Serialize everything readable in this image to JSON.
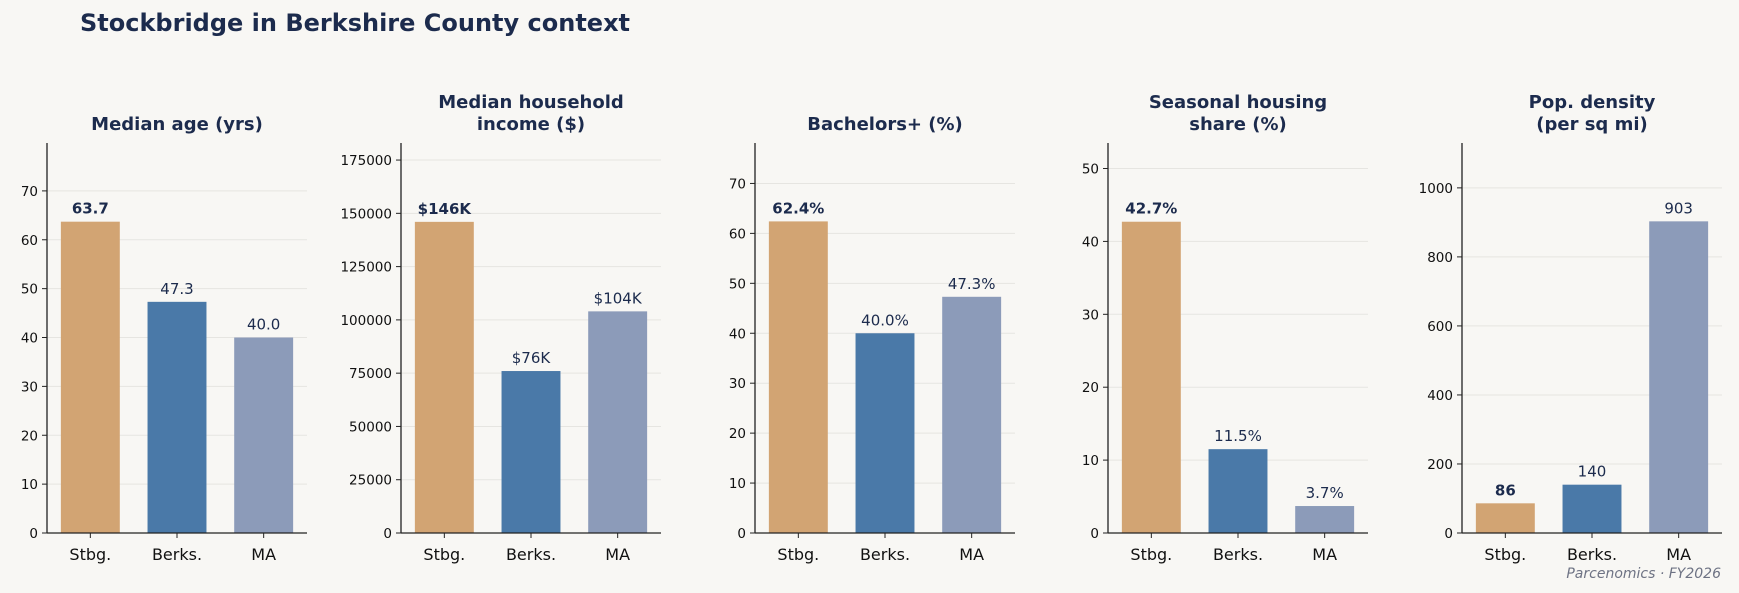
{
  "title": "Stockbridge in Berkshire County context",
  "credit": "Parcenomics · FY2026",
  "colors": {
    "stbg": "#d2a473",
    "berks": "#4a79a8",
    "ma": "#8c9bb9",
    "title_text": "#1c2b4d",
    "grid": "#e6e5e1",
    "axis": "#222222"
  },
  "chart_data": [
    {
      "type": "bar",
      "title": [
        "Median age (yrs)"
      ],
      "categories": [
        "Stbg.",
        "Berks.",
        "MA"
      ],
      "values": [
        63.7,
        47.3,
        40.0
      ],
      "labels": [
        "63.7",
        "47.3",
        "40.0"
      ],
      "ylim": [
        0,
        79.8
      ],
      "yticks": [
        0,
        10,
        20,
        30,
        40,
        50,
        60,
        70
      ],
      "ytick_labels": [
        "0",
        "10",
        "20",
        "30",
        "40",
        "50",
        "60",
        "70"
      ]
    },
    {
      "type": "bar",
      "title": [
        "Median household",
        "income ($)"
      ],
      "categories": [
        "Stbg.",
        "Berks.",
        "MA"
      ],
      "values": [
        146000,
        76000,
        104000
      ],
      "labels": [
        "$146K",
        "$76K",
        "$104K"
      ],
      "ylim": [
        0,
        183000
      ],
      "yticks": [
        0,
        25000,
        50000,
        75000,
        100000,
        125000,
        150000,
        175000
      ],
      "ytick_labels": [
        "0",
        "25000",
        "50000",
        "75000",
        "100000",
        "125000",
        "150000",
        "175000"
      ]
    },
    {
      "type": "bar",
      "title": [
        "Bachelors+ (%)"
      ],
      "categories": [
        "Stbg.",
        "Berks.",
        "MA"
      ],
      "values": [
        62.4,
        40.0,
        47.3
      ],
      "labels": [
        "62.4%",
        "40.0%",
        "47.3%"
      ],
      "ylim": [
        0,
        78.1
      ],
      "yticks": [
        0,
        10,
        20,
        30,
        40,
        50,
        60,
        70
      ],
      "ytick_labels": [
        "0",
        "10",
        "20",
        "30",
        "40",
        "50",
        "60",
        "70"
      ]
    },
    {
      "type": "bar",
      "title": [
        "Seasonal housing",
        "share (%)"
      ],
      "categories": [
        "Stbg.",
        "Berks.",
        "MA"
      ],
      "values": [
        42.7,
        11.5,
        3.7
      ],
      "labels": [
        "42.7%",
        "11.5%",
        "3.7%"
      ],
      "ylim": [
        0,
        53.5
      ],
      "yticks": [
        0,
        10,
        20,
        30,
        40,
        50
      ],
      "ytick_labels": [
        "0",
        "10",
        "20",
        "30",
        "40",
        "50"
      ]
    },
    {
      "type": "bar",
      "title": [
        "Pop. density",
        "(per sq mi)"
      ],
      "categories": [
        "Stbg.",
        "Berks.",
        "MA"
      ],
      "values": [
        86,
        140,
        903
      ],
      "labels": [
        "86",
        "140",
        "903"
      ],
      "ylim": [
        0,
        1130
      ],
      "yticks": [
        0,
        200,
        400,
        600,
        800,
        1000
      ],
      "ytick_labels": [
        "0",
        "200",
        "400",
        "600",
        "800",
        "1000"
      ]
    }
  ]
}
